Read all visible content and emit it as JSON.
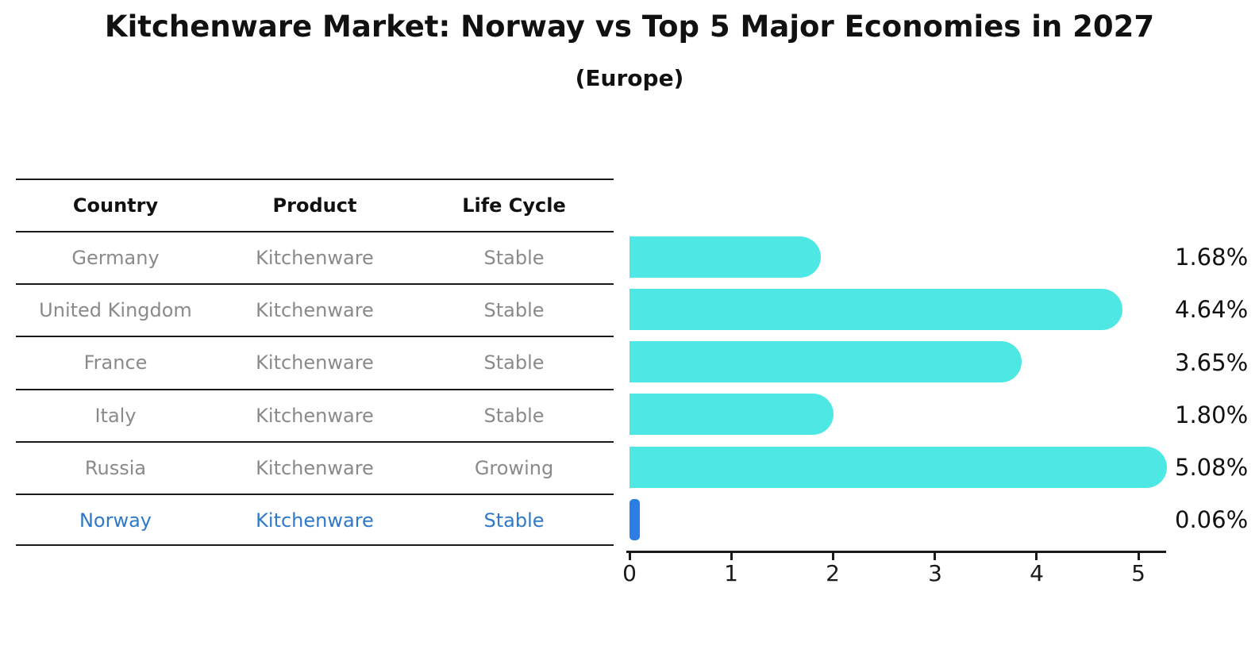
{
  "title": "Kitchenware Market: Norway vs Top 5 Major Economies in 2027",
  "subtitle": "(Europe)",
  "table": {
    "headers": [
      "Country",
      "Product",
      "Life Cycle"
    ],
    "rows": [
      {
        "country": "Germany",
        "product": "Kitchenware",
        "life_cycle": "Stable",
        "highlight": false
      },
      {
        "country": "United Kingdom",
        "product": "Kitchenware",
        "life_cycle": "Stable",
        "highlight": false
      },
      {
        "country": "France",
        "product": "Kitchenware",
        "life_cycle": "Stable",
        "highlight": false
      },
      {
        "country": "Italy",
        "product": "Kitchenware",
        "life_cycle": "Stable",
        "highlight": false
      },
      {
        "country": "Russia",
        "product": "Kitchenware",
        "life_cycle": "Growing",
        "highlight": false
      },
      {
        "country": "Norway",
        "product": "Kitchenware",
        "life_cycle": "Stable",
        "highlight": true
      }
    ]
  },
  "chart_data": {
    "type": "bar",
    "orientation": "horizontal",
    "title": "Kitchenware Market: Norway vs Top 5 Major Economies in 2027",
    "subtitle": "(Europe)",
    "categories": [
      "Germany",
      "United Kingdom",
      "France",
      "Italy",
      "Russia",
      "Norway"
    ],
    "values": [
      1.68,
      4.64,
      3.65,
      1.8,
      5.08,
      0.06
    ],
    "value_labels": [
      "1.68%",
      "4.64%",
      "3.65%",
      "1.80%",
      "5.08%",
      "0.06%"
    ],
    "x_ticks": [
      "0",
      "1",
      "2",
      "3",
      "4",
      "5"
    ],
    "xlim": [
      0,
      5.3
    ],
    "grid": false,
    "legend": false,
    "highlight_index": 5,
    "bar_color": "#4de8e3",
    "highlight_color": "#2c7ee6"
  },
  "colors": {
    "highlight_text": "#2e79ca",
    "table_text": "#8a8a8a",
    "axis": "#1a1a1a",
    "text": "#111111"
  }
}
